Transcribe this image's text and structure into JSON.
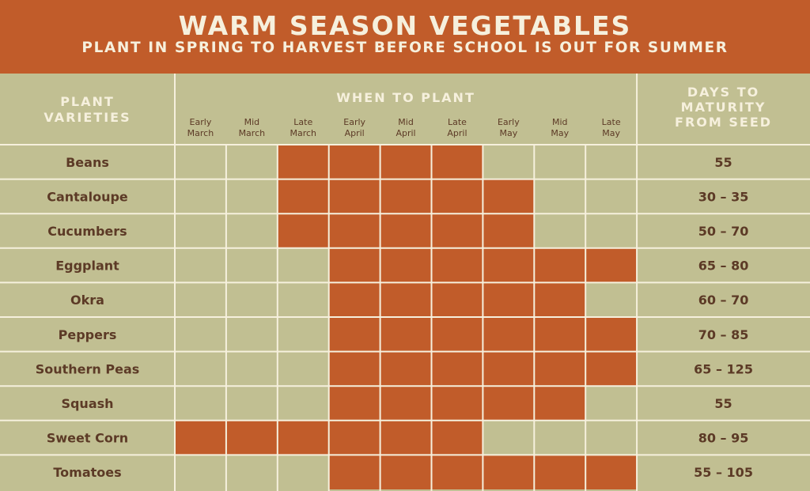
{
  "header": {
    "title": "WARM SEASON VEGETABLES",
    "subtitle": "PLANT IN SPRING TO HARVEST BEFORE SCHOOL IS OUT FOR SUMMER"
  },
  "colors": {
    "accent": "#c15c2a",
    "cell": "#c1bf92",
    "grid_line": "#f6f0dd",
    "label_text": "#5c3a26",
    "header_text": "#f6f0dd"
  },
  "chart_data": {
    "type": "table",
    "column_headers": {
      "varieties": [
        "PLANT",
        "VARIETIES"
      ],
      "when": "WHEN TO PLANT",
      "days": [
        "DAYS TO",
        "MATURITY",
        "FROM SEED"
      ]
    },
    "periods": [
      [
        "Early",
        "March"
      ],
      [
        "Mid",
        "March"
      ],
      [
        "Late",
        "March"
      ],
      [
        "Early",
        "April"
      ],
      [
        "Mid",
        "April"
      ],
      [
        "Late",
        "April"
      ],
      [
        "Early",
        "May"
      ],
      [
        "Mid",
        "May"
      ],
      [
        "Late",
        "May"
      ]
    ],
    "rows": [
      {
        "name": "Beans",
        "plant": [
          0,
          0,
          1,
          1,
          1,
          1,
          0,
          0,
          0
        ],
        "days": "55"
      },
      {
        "name": "Cantaloupe",
        "plant": [
          0,
          0,
          1,
          1,
          1,
          1,
          1,
          0,
          0
        ],
        "days": "30 – 35"
      },
      {
        "name": "Cucumbers",
        "plant": [
          0,
          0,
          1,
          1,
          1,
          1,
          1,
          0,
          0
        ],
        "days": "50 – 70"
      },
      {
        "name": "Eggplant",
        "plant": [
          0,
          0,
          0,
          1,
          1,
          1,
          1,
          1,
          1
        ],
        "days": "65 – 80"
      },
      {
        "name": "Okra",
        "plant": [
          0,
          0,
          0,
          1,
          1,
          1,
          1,
          1,
          0
        ],
        "days": "60 – 70"
      },
      {
        "name": "Peppers",
        "plant": [
          0,
          0,
          0,
          1,
          1,
          1,
          1,
          1,
          1
        ],
        "days": "70 – 85"
      },
      {
        "name": "Southern Peas",
        "plant": [
          0,
          0,
          0,
          1,
          1,
          1,
          1,
          1,
          1
        ],
        "days": "65 – 125"
      },
      {
        "name": "Squash",
        "plant": [
          0,
          0,
          0,
          1,
          1,
          1,
          1,
          1,
          0
        ],
        "days": "55"
      },
      {
        "name": "Sweet Corn",
        "plant": [
          1,
          1,
          1,
          1,
          1,
          1,
          0,
          0,
          0
        ],
        "days": "80 – 95"
      },
      {
        "name": "Tomatoes",
        "plant": [
          0,
          0,
          0,
          1,
          1,
          1,
          1,
          1,
          1
        ],
        "days": "55 – 105"
      }
    ]
  }
}
